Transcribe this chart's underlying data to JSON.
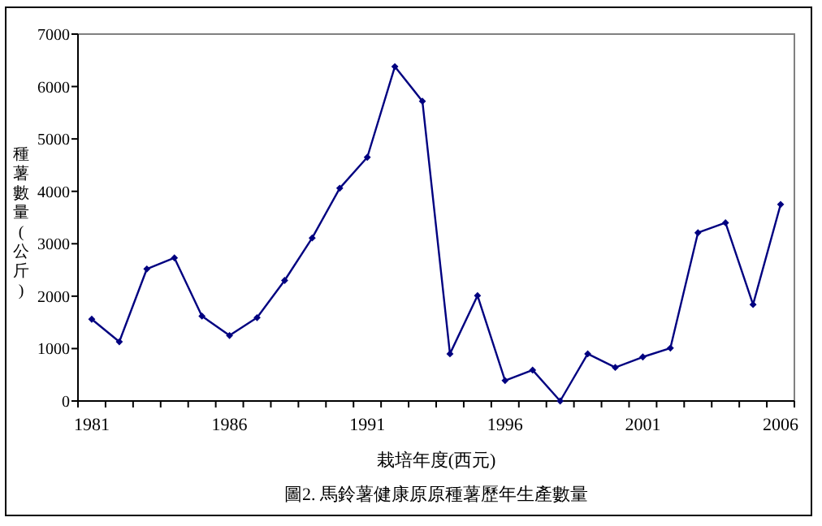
{
  "chart_data": {
    "type": "line",
    "title": "圖2. 馬鈴薯健康原原種薯歷年生產數量",
    "xlabel": "栽培年度(西元)",
    "ylabel": "種薯數量(公斤)",
    "categories": [
      "1981",
      null,
      null,
      null,
      null,
      "1986",
      null,
      null,
      null,
      null,
      "1991",
      null,
      null,
      null,
      null,
      "1996",
      null,
      null,
      null,
      null,
      "2001",
      null,
      null,
      null,
      null,
      "2006"
    ],
    "series": [
      {
        "color": "#000080",
        "values": [
          1560,
          1130,
          2520,
          2730,
          1620,
          1250,
          1590,
          2300,
          3110,
          4060,
          4650,
          6380,
          5720,
          900,
          2010,
          390,
          590,
          0,
          900,
          640,
          840,
          1010,
          3210,
          3400,
          1840,
          3750
        ]
      }
    ],
    "ylim": [
      0,
      7000
    ],
    "yticks": [
      0,
      1000,
      2000,
      3000,
      4000,
      5000,
      6000,
      7000
    ],
    "marker": "diamond",
    "line_style": "solid",
    "grid": false
  }
}
